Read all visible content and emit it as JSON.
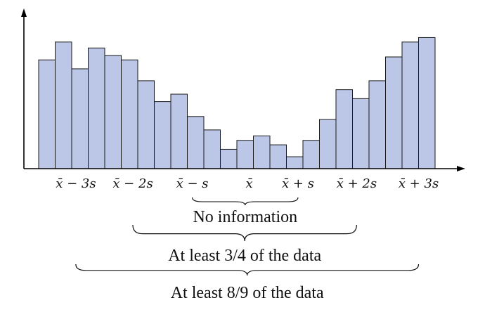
{
  "chart_data": {
    "type": "bar",
    "bar_color": "#bcc6e6",
    "outline_color": "#1a1a1a",
    "values": [
      73,
      85,
      67,
      81,
      76,
      73,
      59,
      45,
      50,
      35,
      26,
      13,
      19,
      22,
      16,
      8,
      19,
      33,
      53,
      47,
      59,
      75,
      85,
      88
    ],
    "ylim": [
      0,
      100
    ],
    "tick_labels": [
      {
        "text": "x̄ − 3s",
        "bar_pos": 2.25
      },
      {
        "text": "x̄ − 2s",
        "bar_pos": 5.7
      },
      {
        "text": "x̄ − s",
        "bar_pos": 9.3
      },
      {
        "text": "x̄",
        "bar_pos": 12.75
      },
      {
        "text": "x̄ + s",
        "bar_pos": 15.7
      },
      {
        "text": "x̄ + 2s",
        "bar_pos": 19.25
      },
      {
        "text": "x̄ + 3s",
        "bar_pos": 23.0
      }
    ],
    "brackets": [
      {
        "label": "No information",
        "from_bar": 9.3,
        "to_bar": 15.7
      },
      {
        "label": "At least 3/4 of the data",
        "from_bar": 5.7,
        "to_bar": 19.25
      },
      {
        "label": "At least 8/9 of the data",
        "from_bar": 2.25,
        "to_bar": 23.0
      }
    ]
  }
}
